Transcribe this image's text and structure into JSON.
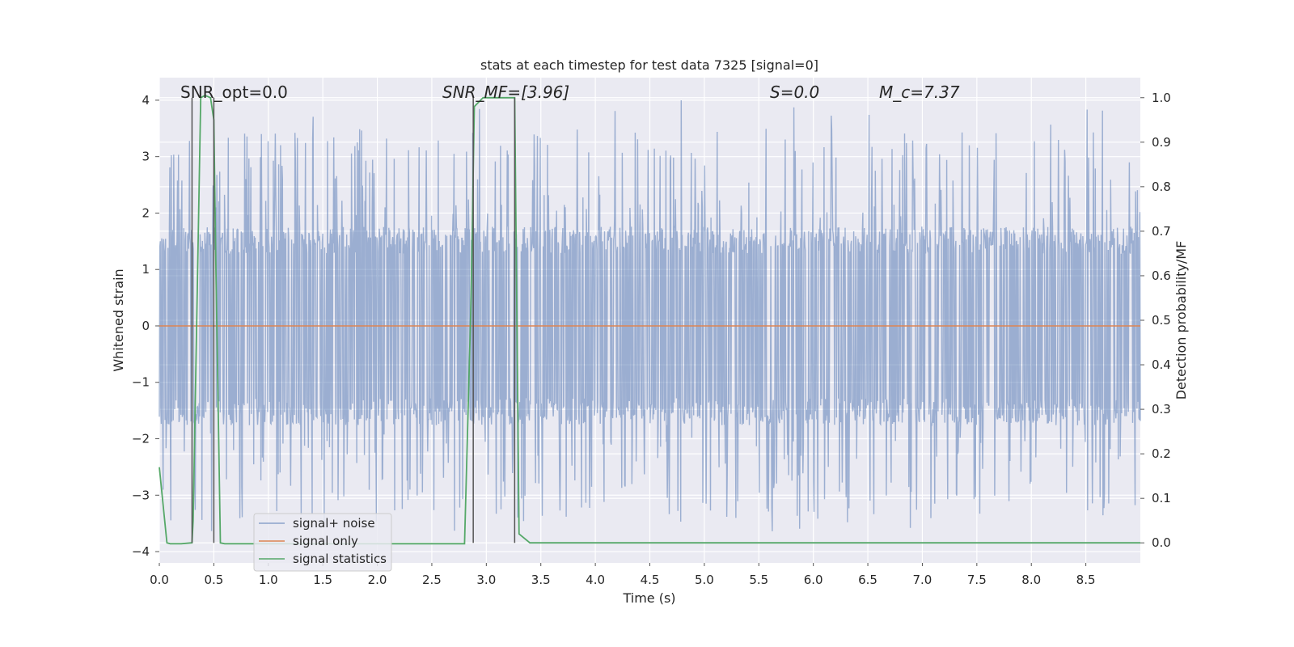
{
  "chart_data": {
    "type": "line",
    "title": "stats at each timestep for test data 7325 [signal=0]",
    "xlabel": "Time (s)",
    "ylabel": "Whitened strain",
    "y2label": "Detection probability/MF",
    "xlim": [
      0.0,
      9.0
    ],
    "ylim": [
      -4.2,
      4.4
    ],
    "y2lim": [
      -0.045,
      1.045
    ],
    "xticks": [
      0.0,
      0.5,
      1.0,
      1.5,
      2.0,
      2.5,
      3.0,
      3.5,
      4.0,
      4.5,
      5.0,
      5.5,
      6.0,
      6.5,
      7.0,
      7.5,
      8.0,
      8.5
    ],
    "xtick_labels": [
      "0.0",
      "0.5",
      "1.0",
      "1.5",
      "2.0",
      "2.5",
      "3.0",
      "3.5",
      "4.0",
      "4.5",
      "5.0",
      "5.5",
      "6.0",
      "6.5",
      "7.0",
      "7.5",
      "8.0",
      "8.5"
    ],
    "yticks": [
      4,
      3,
      2,
      1,
      0,
      -1,
      -2,
      -3,
      -4
    ],
    "ytick_labels": [
      "4",
      "3",
      "2",
      "1",
      "0",
      "−1",
      "−2",
      "−3",
      "−4"
    ],
    "y2ticks": [
      1.0,
      0.9,
      0.8,
      0.7,
      0.6,
      0.5,
      0.4,
      0.3,
      0.2,
      0.1,
      0.0
    ],
    "y2tick_labels": [
      "1.0",
      "0.9",
      "0.8",
      "0.7",
      "0.6",
      "0.5",
      "0.4",
      "0.3",
      "0.2",
      "0.1",
      "0.0"
    ],
    "grid": true,
    "legend_position": "lower-left",
    "legend": [
      "signal+ noise",
      "signal only",
      "signal statistics"
    ],
    "colors": {
      "noise": "#4c72b0",
      "signal": "#dd8452",
      "stats": "#55a868",
      "background": "#eaeaf2",
      "grid": "#ffffff",
      "marker_lines": "#555555"
    },
    "annotations": [
      {
        "text": "SNR_opt=0.0",
        "x": 0.2
      },
      {
        "text": "SNR_MF=[3.96]",
        "x": 2.6
      },
      {
        "text": "S=0.0",
        "x": 5.6
      },
      {
        "text": "M_c=7.37",
        "x": 6.6
      }
    ],
    "noise": {
      "name": "signal+ noise",
      "seed": 7325,
      "samples": 2048,
      "envelope_typical": 1.6,
      "spike_range": [
        -3.75,
        4.0
      ]
    },
    "signal_only": {
      "name": "signal only",
      "value": 0.0
    },
    "stats_series": {
      "name": "signal statistics",
      "x": [
        0.0,
        0.07,
        0.1,
        0.2,
        0.3,
        0.31,
        0.38,
        0.42,
        0.47,
        0.5,
        0.52,
        0.56,
        0.6,
        0.7,
        1.0,
        1.5,
        2.0,
        2.5,
        2.8,
        2.86,
        2.89,
        2.97,
        3.0,
        3.1,
        3.2,
        3.26,
        3.3,
        3.4,
        3.6,
        9.0
      ],
      "y": [
        0.17,
        0.0,
        -0.002,
        -0.002,
        0.0,
        0.05,
        1.0,
        1.005,
        1.0,
        0.95,
        0.6,
        0.0,
        -0.002,
        -0.002,
        -0.002,
        -0.002,
        -0.002,
        -0.002,
        -0.002,
        0.55,
        0.98,
        1.0,
        1.0,
        1.0,
        1.0,
        1.0,
        0.02,
        0.0,
        0.0,
        0.0
      ]
    },
    "vlines": [
      0.3,
      0.5,
      2.88,
      3.26
    ]
  }
}
